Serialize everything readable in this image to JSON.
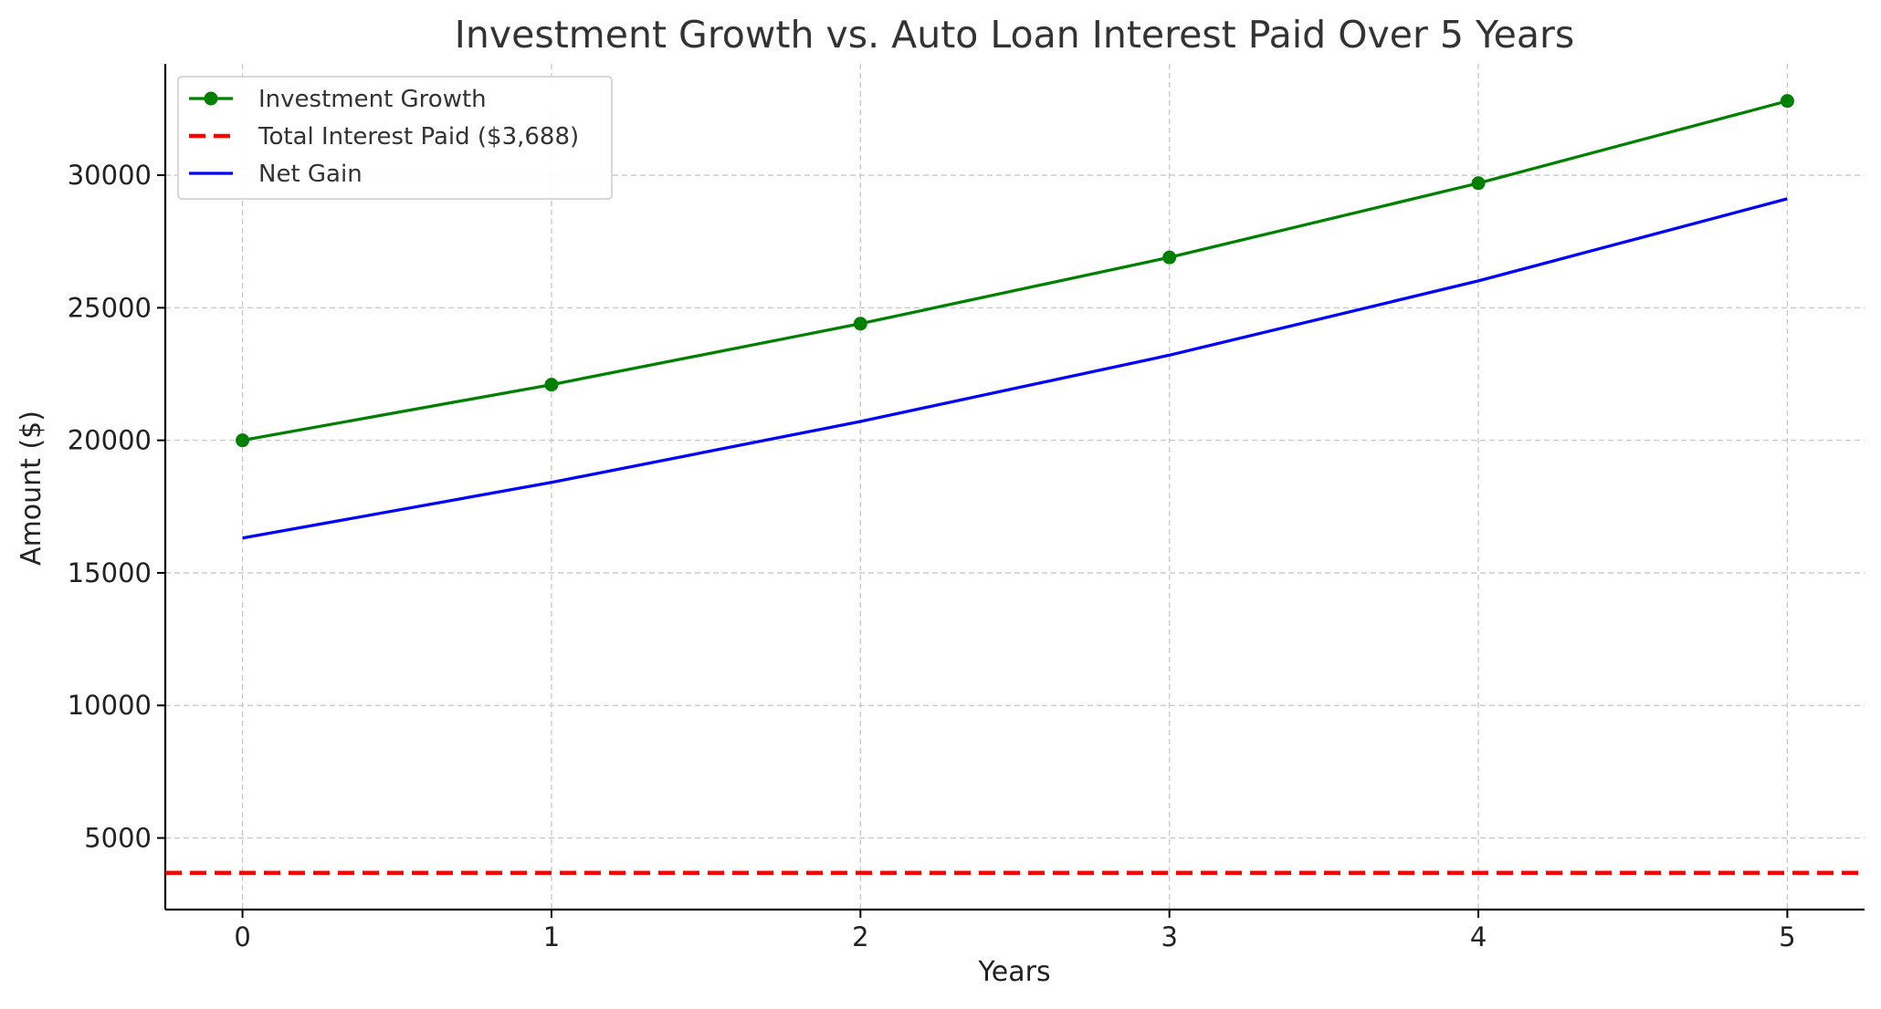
{
  "chart_data": {
    "type": "line",
    "title": "Investment Growth vs. Auto Loan Interest Paid Over 5 Years",
    "xlabel": "Years",
    "ylabel": "Amount ($)",
    "x": [
      0,
      1,
      2,
      3,
      4,
      5
    ],
    "xlim": [
      -0.25,
      5.25
    ],
    "ylim": [
      2300,
      34200
    ],
    "xticks": [
      0,
      1,
      2,
      3,
      4,
      5
    ],
    "yticks": [
      5000,
      10000,
      15000,
      20000,
      25000,
      30000
    ],
    "grid": true,
    "legend_position": "top-left",
    "series": [
      {
        "name": "Investment Growth",
        "values": [
          20000,
          22100,
          24400,
          26900,
          29700,
          32800
        ],
        "color": "#008000",
        "style": "solid",
        "markers": true
      },
      {
        "name": "Total Interest Paid ($3,688)",
        "values": [
          3688,
          3688,
          3688,
          3688,
          3688,
          3688
        ],
        "color": "#ff0000",
        "style": "dashed",
        "markers": false,
        "span": "full-width"
      },
      {
        "name": "Net Gain",
        "values": [
          16312,
          18412,
          20712,
          23212,
          26012,
          29112
        ],
        "color": "#0000ff",
        "style": "solid",
        "markers": false
      }
    ]
  }
}
